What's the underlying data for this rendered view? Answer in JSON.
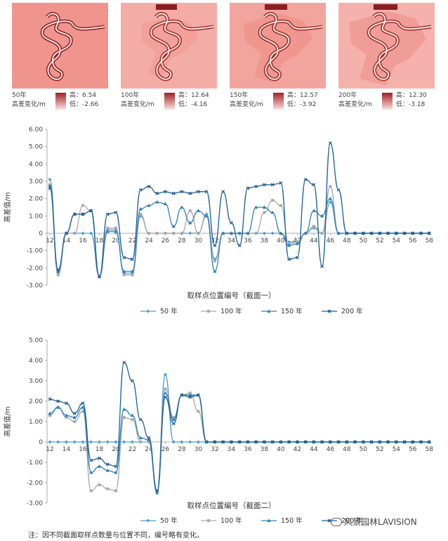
{
  "maps": [
    {
      "year": "50年",
      "variable": "高差变化/m",
      "high": "高：6.54",
      "low": "低：-2.66",
      "bg": "#f0948e"
    },
    {
      "year": "100年",
      "variable": "高差变化/m",
      "high": "高：12.64",
      "low": "低：-4.16",
      "bg": "#f4aca6"
    },
    {
      "year": "150年",
      "variable": "高差变化/m",
      "high": "高：12.57",
      "low": "低：-3.92",
      "bg": "#f2a49e"
    },
    {
      "year": "200年",
      "variable": "高差变化/m",
      "high": "高：12.30",
      "low": "低：-3.18",
      "bg": "#f5b2ac"
    }
  ],
  "note": "注：因不同截面取样点数量与位置不同，编号略有变化。",
  "watermark": "风景园林LAVISION",
  "chart_data": [
    {
      "type": "line",
      "xlabel": "取样点位置编号（截面一）",
      "ylabel": "高差值/m",
      "ylim": [
        -3,
        6
      ],
      "yticks": [
        "-3.00",
        "-2.00",
        "-1.00",
        "0",
        "1.00",
        "2.00",
        "3.00",
        "4.00",
        "5.00",
        "6.00"
      ],
      "xticks": [
        "12",
        "14",
        "16",
        "18",
        "20",
        "22",
        "24",
        "26",
        "28",
        "30",
        "32",
        "34",
        "36",
        "38",
        "40",
        "42",
        "44",
        "46",
        "48",
        "50",
        "52",
        "54",
        "56",
        "58"
      ],
      "x": [
        12,
        13,
        14,
        15,
        16,
        17,
        18,
        19,
        20,
        21,
        22,
        23,
        24,
        25,
        26,
        27,
        28,
        29,
        30,
        31,
        32,
        33,
        34,
        35,
        36,
        37,
        38,
        39,
        40,
        41,
        42,
        43,
        44,
        45,
        46,
        47,
        48,
        49,
        50,
        51,
        52,
        53,
        54,
        55,
        56,
        57,
        58
      ],
      "series": [
        {
          "name": "50 年",
          "color": "#4a9fd0",
          "marker": "diamond",
          "values": [
            3.1,
            -2.3,
            0,
            0,
            0,
            0,
            -2.5,
            0.2,
            0.2,
            -2.3,
            -2.3,
            1.0,
            0,
            0,
            0,
            0,
            0,
            0,
            0,
            1.1,
            -1.5,
            0,
            0,
            0,
            0,
            0,
            0,
            0,
            0,
            -0.5,
            -0.5,
            0,
            0.3,
            0,
            1.8,
            0,
            0,
            0,
            0,
            0,
            0,
            0,
            0,
            0,
            0,
            0,
            0
          ]
        },
        {
          "name": "100 年",
          "color": "#a9a9a9",
          "marker": "square",
          "values": [
            2.8,
            -2.4,
            0,
            0,
            1.6,
            1.3,
            -2.5,
            0.3,
            0.3,
            -2.4,
            -2.4,
            1.1,
            0,
            0,
            0,
            0,
            0,
            1.3,
            0,
            1.0,
            -1.6,
            0,
            0,
            0,
            0,
            0,
            1.2,
            1.9,
            1.6,
            -0.6,
            -0.5,
            0,
            0.4,
            0,
            2.7,
            0,
            0,
            0,
            0,
            0,
            0,
            0,
            0,
            0,
            0,
            0,
            0
          ]
        },
        {
          "name": "150 年",
          "color": "#2f80b8",
          "marker": "triangle",
          "values": [
            2.6,
            -2.2,
            0,
            1.1,
            1.1,
            1.3,
            -2.5,
            0.1,
            0.1,
            -2.2,
            -2.2,
            1.4,
            1.6,
            1.8,
            1.7,
            0.4,
            1.5,
            0.6,
            1.3,
            1.0,
            -2.2,
            0,
            0,
            0,
            0,
            1.5,
            1.5,
            1.2,
            0,
            -0.7,
            -0.6,
            0,
            1.3,
            1.0,
            2.0,
            0,
            0,
            0,
            0,
            0,
            0,
            0,
            0,
            0,
            0,
            0,
            0
          ]
        },
        {
          "name": "200 年",
          "color": "#1f5f95",
          "marker": "x",
          "values": [
            2.7,
            -2.1,
            0,
            1.1,
            1.1,
            1.3,
            -2.5,
            1.1,
            1.2,
            -1.4,
            -1.5,
            2.5,
            2.7,
            2.3,
            2.4,
            2.3,
            2.4,
            2.3,
            2.4,
            2.4,
            -0.7,
            2.4,
            0.6,
            -0.7,
            2.6,
            2.7,
            2.8,
            2.8,
            2.9,
            -1.5,
            -1.4,
            3.1,
            2.8,
            -1.9,
            5.2,
            2.5,
            0,
            0,
            0,
            0,
            0,
            0,
            0,
            0,
            0,
            0,
            0
          ]
        }
      ]
    },
    {
      "type": "line",
      "xlabel": "取样点位置编号（截面二）",
      "ylabel": "高差值/m",
      "ylim": [
        -3,
        5
      ],
      "yticks": [
        "-3.00",
        "-2.00",
        "-1.00",
        "0",
        "1.00",
        "2.00",
        "3.00",
        "4.00",
        "5.00"
      ],
      "xticks": [
        "12",
        "14",
        "16",
        "18",
        "20",
        "22",
        "24",
        "26",
        "28",
        "30",
        "32",
        "34",
        "36",
        "38",
        "40",
        "42",
        "44",
        "46",
        "48",
        "50",
        "52",
        "54",
        "56",
        "58"
      ],
      "x": [
        12,
        13,
        14,
        15,
        16,
        17,
        18,
        19,
        20,
        21,
        22,
        23,
        24,
        25,
        26,
        27,
        28,
        29,
        30,
        31,
        32,
        33,
        34,
        35,
        36,
        37,
        38,
        39,
        40,
        41,
        42,
        43,
        44,
        45,
        46,
        47,
        48,
        49,
        50,
        51,
        52,
        53,
        54,
        55,
        56,
        57,
        58
      ],
      "series": [
        {
          "name": "50 年",
          "color": "#4a9fd0",
          "marker": "diamond",
          "values": [
            0,
            0,
            0,
            0,
            0,
            0,
            0,
            0,
            0,
            0,
            0,
            0,
            0,
            -2.4,
            3.3,
            0,
            0,
            0,
            0,
            0,
            0,
            0,
            0,
            0,
            0,
            0,
            0,
            0,
            0,
            0,
            0,
            0,
            0,
            0,
            0,
            0,
            0,
            0,
            0,
            0,
            0,
            0,
            0,
            0,
            0,
            0,
            0
          ]
        },
        {
          "name": "100 年",
          "color": "#a9a9a9",
          "marker": "square",
          "values": [
            1.3,
            1.7,
            1.2,
            1.0,
            1.5,
            -2.4,
            -2.1,
            -2.3,
            -2.4,
            1.2,
            1.1,
            0,
            0,
            -2.4,
            2.6,
            1.2,
            2.3,
            2.4,
            1.5,
            0,
            0,
            0,
            0,
            0,
            0,
            0,
            0,
            0,
            0,
            0,
            0,
            0,
            0,
            0,
            0,
            0,
            0,
            0,
            0,
            0,
            0,
            0,
            0,
            0,
            0,
            0,
            0
          ]
        },
        {
          "name": "150 年",
          "color": "#2f80b8",
          "marker": "triangle",
          "values": [
            1.4,
            1.7,
            1.3,
            1.2,
            1.7,
            -1.5,
            -1.2,
            -1.4,
            -1.5,
            1.6,
            1.3,
            0.2,
            0.1,
            -2.5,
            2.4,
            1.1,
            2.3,
            2.3,
            2.3,
            0,
            0,
            0,
            0,
            0,
            0,
            0,
            0,
            0,
            0,
            0,
            0,
            0,
            0,
            0,
            0,
            0,
            0,
            0,
            0,
            0,
            0,
            0,
            0,
            0,
            0,
            0,
            0
          ]
        },
        {
          "name": "200 年",
          "color": "#1f5f95",
          "marker": "x",
          "values": [
            2.1,
            2.0,
            1.9,
            1.4,
            1.9,
            -0.9,
            -0.8,
            -1.1,
            -1.2,
            3.9,
            3.0,
            1.1,
            0.2,
            -2.4,
            2.2,
            0.9,
            2.3,
            2.2,
            2.3,
            0,
            0,
            0,
            0,
            0,
            0,
            0,
            0,
            0,
            0,
            0,
            0,
            0,
            0,
            0,
            0,
            0,
            0,
            0,
            0,
            0,
            0,
            0,
            0,
            0,
            0,
            0,
            0
          ]
        }
      ]
    }
  ]
}
